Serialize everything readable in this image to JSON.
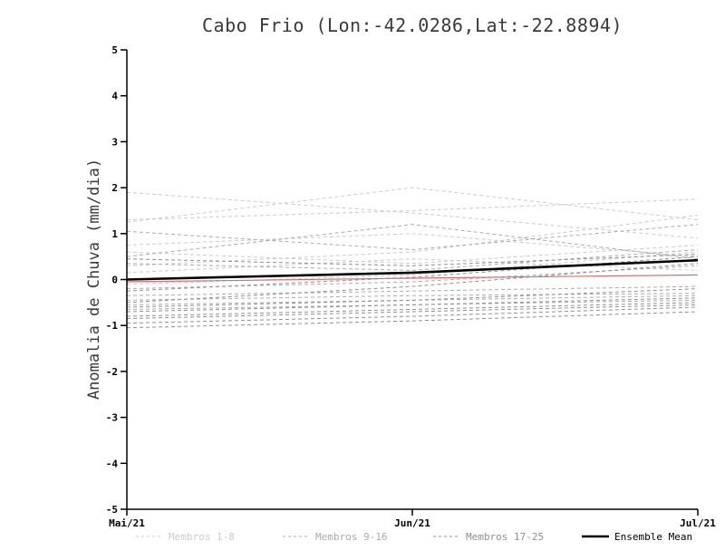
{
  "chart_data": {
    "type": "line",
    "title": "Cabo Frio (Lon:-42.0286,Lat:-22.8894)",
    "ylabel": "Anomalia de Chuva (mm/dia)",
    "xlabel": "",
    "x_tick_labels": [
      "Mai/21",
      "Jun/21",
      "Jul/21"
    ],
    "ylim": [
      -5,
      5
    ],
    "yticks": [
      5,
      4,
      3,
      2,
      1,
      0,
      -1,
      -2,
      -3,
      -4,
      -5
    ],
    "grid": false,
    "legend_position": "bottom",
    "colors": {
      "group1": "#cbcbcb",
      "group2": "#ababab",
      "group3": "#8f8f8f",
      "red_line": "#d96b6b",
      "ensemble_mean": "#000000"
    },
    "legend": [
      {
        "label": "Membros 1-8",
        "style": "dashed",
        "color": "#cbcbcb"
      },
      {
        "label": "Membros 9-16",
        "style": "dashed",
        "color": "#ababab"
      },
      {
        "label": "Membros 17-25",
        "style": "dashed",
        "color": "#8f8f8f"
      },
      {
        "label": "Ensemble Mean",
        "style": "solid",
        "color": "#000000"
      }
    ],
    "series": [
      {
        "name": "membro-1",
        "group": "Membros 1-8",
        "style": "dashed",
        "width": 1,
        "color": "#cbcbcb",
        "values": [
          1.9,
          1.45,
          0.9
        ]
      },
      {
        "name": "membro-2",
        "group": "Membros 1-8",
        "style": "dashed",
        "width": 1,
        "color": "#cbcbcb",
        "values": [
          1.25,
          2.0,
          1.3
        ]
      },
      {
        "name": "membro-3",
        "group": "Membros 1-8",
        "style": "dashed",
        "width": 1,
        "color": "#cbcbcb",
        "values": [
          1.3,
          1.5,
          1.75
        ]
      },
      {
        "name": "membro-4",
        "group": "Membros 1-8",
        "style": "dashed",
        "width": 1,
        "color": "#cbcbcb",
        "values": [
          0.75,
          1.0,
          0.5
        ]
      },
      {
        "name": "membro-5",
        "group": "Membros 1-8",
        "style": "dashed",
        "width": 1,
        "color": "#cbcbcb",
        "values": [
          0.6,
          0.35,
          0.75
        ]
      },
      {
        "name": "membro-6",
        "group": "Membros 1-8",
        "style": "dashed",
        "width": 1,
        "color": "#cbcbcb",
        "values": [
          0.3,
          0.6,
          1.4
        ]
      },
      {
        "name": "membro-7",
        "group": "Membros 1-8",
        "style": "dashed",
        "width": 1,
        "color": "#cbcbcb",
        "values": [
          0.15,
          0.45,
          0.2
        ]
      },
      {
        "name": "membro-8",
        "group": "Membros 1-8",
        "style": "dashed",
        "width": 1,
        "color": "#cbcbcb",
        "values": [
          -0.1,
          0.1,
          0.6
        ]
      },
      {
        "name": "membro-9",
        "group": "Membros 9-16",
        "style": "dashed",
        "width": 1,
        "color": "#ababab",
        "values": [
          1.05,
          0.65,
          1.2
        ]
      },
      {
        "name": "membro-10",
        "group": "Membros 9-16",
        "style": "dashed",
        "width": 1,
        "color": "#ababab",
        "values": [
          0.5,
          1.2,
          0.45
        ]
      },
      {
        "name": "membro-11",
        "group": "Membros 9-16",
        "style": "dashed",
        "width": 1,
        "color": "#ababab",
        "values": [
          0.35,
          0.2,
          0.65
        ]
      },
      {
        "name": "membro-12",
        "group": "Membros 9-16",
        "style": "dashed",
        "width": 1,
        "color": "#ababab",
        "values": [
          -0.2,
          -0.05,
          0.3
        ]
      },
      {
        "name": "membro-13",
        "group": "Membros 9-16",
        "style": "dashed",
        "width": 1,
        "color": "#ababab",
        "values": [
          -0.35,
          -0.25,
          -0.15
        ]
      },
      {
        "name": "membro-14",
        "group": "Membros 9-16",
        "style": "dashed",
        "width": 1,
        "color": "#ababab",
        "values": [
          -0.45,
          -0.35,
          -0.3
        ]
      },
      {
        "name": "membro-15",
        "group": "Membros 9-16",
        "style": "dashed",
        "width": 1,
        "color": "#ababab",
        "values": [
          -0.55,
          -0.45,
          -0.35
        ]
      },
      {
        "name": "membro-16",
        "group": "Membros 9-16",
        "style": "dashed",
        "width": 1,
        "color": "#ababab",
        "values": [
          -0.65,
          -0.55,
          -0.45
        ]
      },
      {
        "name": "membro-17",
        "group": "Membros 17-25",
        "style": "dashed",
        "width": 1,
        "color": "#8f8f8f",
        "values": [
          0.45,
          0.3,
          0.55
        ]
      },
      {
        "name": "membro-18",
        "group": "Membros 17-25",
        "style": "dashed",
        "width": 1,
        "color": "#8f8f8f",
        "values": [
          -0.25,
          0.05,
          0.5
        ]
      },
      {
        "name": "membro-19",
        "group": "Membros 17-25",
        "style": "dashed",
        "width": 1,
        "color": "#8f8f8f",
        "values": [
          -0.5,
          -0.15,
          0.35
        ]
      },
      {
        "name": "membro-20",
        "group": "Membros 17-25",
        "style": "dashed",
        "width": 1,
        "color": "#8f8f8f",
        "values": [
          -0.6,
          -0.45,
          -0.2
        ]
      },
      {
        "name": "membro-21",
        "group": "Membros 17-25",
        "style": "dashed",
        "width": 1,
        "color": "#8f8f8f",
        "values": [
          -0.7,
          -0.55,
          -0.4
        ]
      },
      {
        "name": "membro-22",
        "group": "Membros 17-25",
        "style": "dashed",
        "width": 1,
        "color": "#8f8f8f",
        "values": [
          -0.8,
          -0.65,
          -0.5
        ]
      },
      {
        "name": "membro-23",
        "group": "Membros 17-25",
        "style": "dashed",
        "width": 1,
        "color": "#8f8f8f",
        "values": [
          -0.85,
          -0.7,
          -0.55
        ]
      },
      {
        "name": "membro-24",
        "group": "Membros 17-25",
        "style": "dashed",
        "width": 1,
        "color": "#8f8f8f",
        "values": [
          -0.95,
          -0.8,
          -0.6
        ]
      },
      {
        "name": "membro-25",
        "group": "Membros 17-25",
        "style": "dashed",
        "width": 1,
        "color": "#8f8f8f",
        "values": [
          -1.05,
          -0.9,
          -0.7
        ]
      },
      {
        "name": "red-line",
        "group": "",
        "style": "solid",
        "width": 1.2,
        "color": "#d96b6b",
        "values": [
          -0.05,
          0.03,
          0.1
        ]
      },
      {
        "name": "ensemble-mean",
        "group": "Ensemble Mean",
        "style": "solid",
        "width": 2.6,
        "color": "#000000",
        "values": [
          0.0,
          0.15,
          0.42
        ]
      }
    ]
  }
}
